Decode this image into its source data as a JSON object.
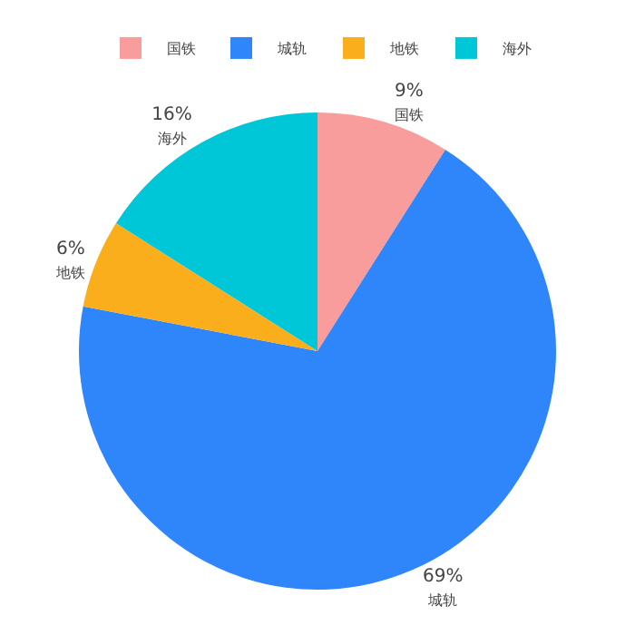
{
  "chart_data": {
    "type": "pie",
    "categories": [
      "国铁",
      "城轨",
      "地铁",
      "海外"
    ],
    "values": [
      9,
      69,
      6,
      16
    ],
    "value_labels": [
      "9%",
      "69%",
      "6%",
      "16%"
    ],
    "colors": [
      "#f89d9b",
      "#2f86fa",
      "#fbae1c",
      "#00c7d8"
    ],
    "legend": "top"
  }
}
